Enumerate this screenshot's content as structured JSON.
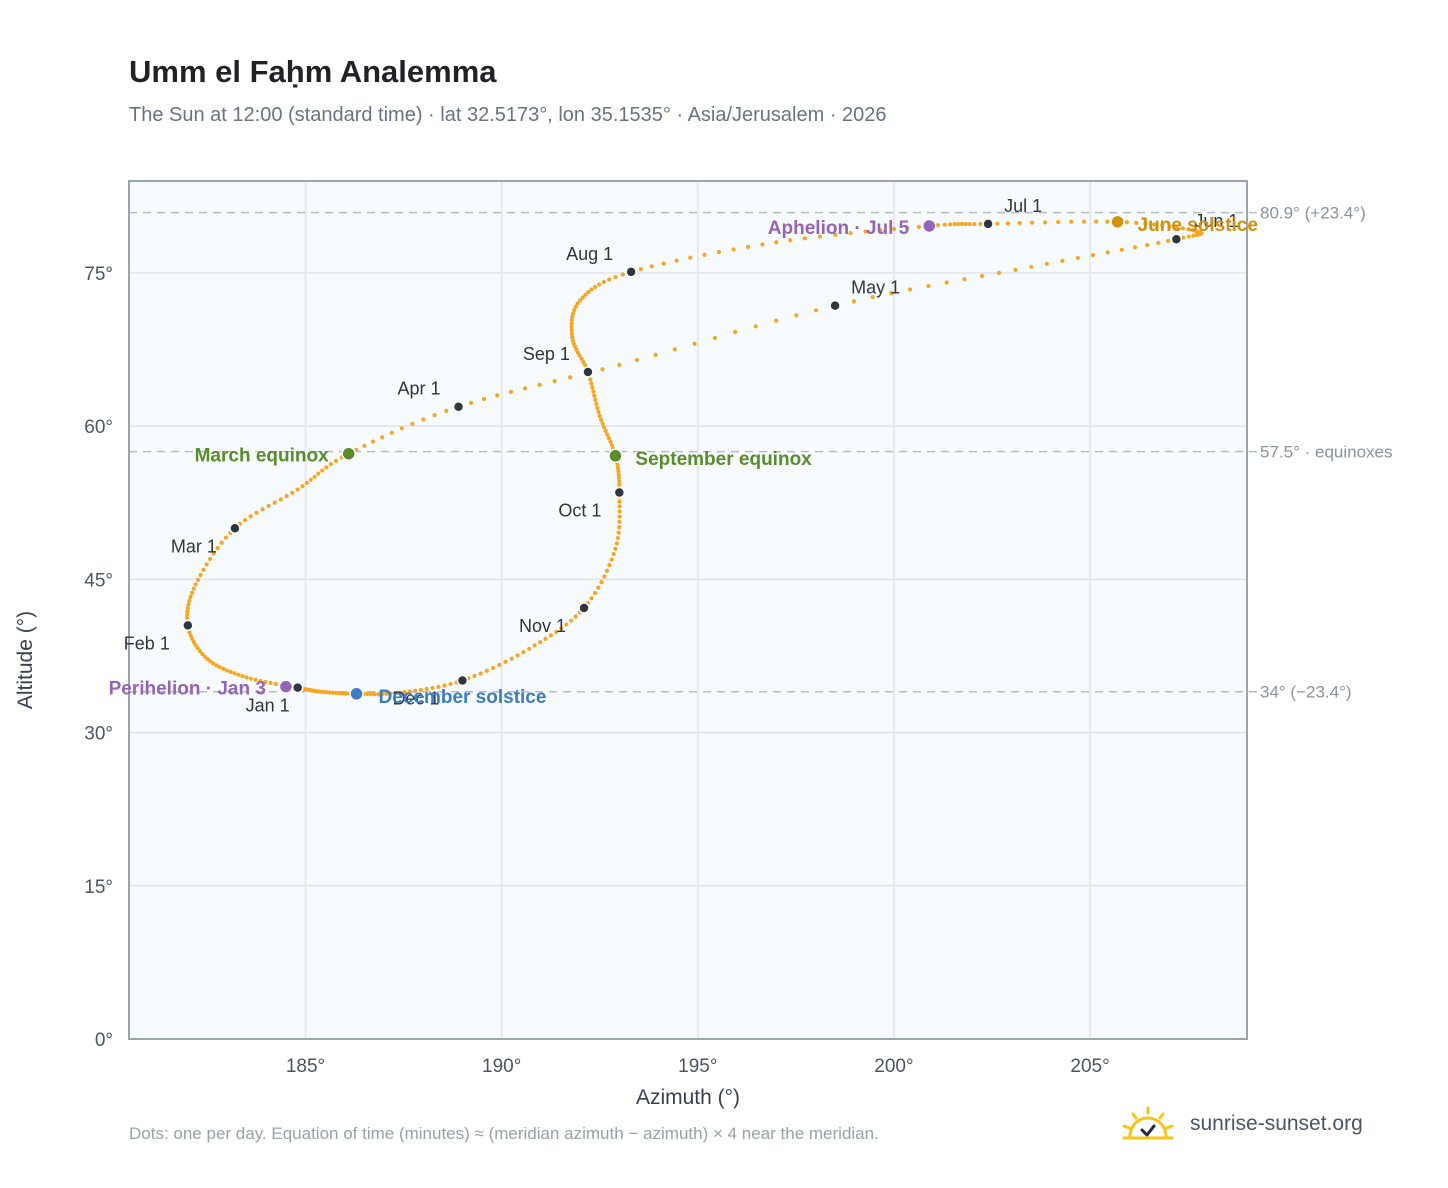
{
  "header": {
    "title": "Umm el Faḥm Analemma",
    "subtitle": "The Sun at 12:00 (standard time) · lat 32.5173°, lon 35.1535° · Asia/Jerusalem · 2026"
  },
  "footer": {
    "footnote": "Dots: one per day. Equation of time (minutes) ≈ (meridian azimuth − azimuth) × 4 near the meridian.",
    "brand": "sunrise-sunset.org"
  },
  "colors": {
    "curve": "#f5a623",
    "month_dot": "#2f3640",
    "equinox": "#5b8c2a",
    "june_solstice": "#d4900a",
    "december_solstice": "#3b7cc4",
    "apsis": "#9464b8",
    "grid": "#e5e9ef",
    "plot_bg": "#f8fbfe",
    "refline": "#b5bec8",
    "brand_icon": "#f5c518"
  },
  "chart_data": {
    "type": "scatter",
    "xlabel": "Azimuth (°)",
    "ylabel": "Altitude (°)",
    "xlim": [
      180.5,
      209
    ],
    "ylim": [
      0,
      84
    ],
    "xticks": [
      185,
      190,
      195,
      200,
      205
    ],
    "xtick_labels": [
      "185°",
      "190°",
      "195°",
      "200°",
      "205°"
    ],
    "yticks": [
      0,
      15,
      30,
      45,
      60,
      75
    ],
    "ytick_labels": [
      "0°",
      "15°",
      "30°",
      "45°",
      "60°",
      "75°"
    ],
    "grid": true,
    "reference_lines": [
      {
        "y": 80.9,
        "label": "80.9° (+23.4°)"
      },
      {
        "y": 57.5,
        "label": "57.5° · equinoxes"
      },
      {
        "y": 34.0,
        "label": "34° (−23.4°)"
      }
    ],
    "months": [
      {
        "label": "Jan 1",
        "az": 184.8,
        "alt": 34.4
      },
      {
        "label": "Feb 1",
        "az": 182.0,
        "alt": 40.5
      },
      {
        "label": "Mar 1",
        "az": 183.2,
        "alt": 50.0
      },
      {
        "label": "Apr 1",
        "az": 188.9,
        "alt": 61.9
      },
      {
        "label": "May 1",
        "az": 198.5,
        "alt": 71.8
      },
      {
        "label": "Jun 1",
        "az": 207.2,
        "alt": 78.3
      },
      {
        "label": "Jul 1",
        "az": 202.4,
        "alt": 79.8
      },
      {
        "label": "Aug 1",
        "az": 193.3,
        "alt": 75.1
      },
      {
        "label": "Sep 1",
        "az": 192.2,
        "alt": 65.3
      },
      {
        "label": "Oct 1",
        "az": 193.0,
        "alt": 53.5
      },
      {
        "label": "Nov 1",
        "az": 192.1,
        "alt": 42.2
      },
      {
        "label": "Dec 1",
        "az": 189.0,
        "alt": 35.1
      }
    ],
    "events": [
      {
        "label": "March equinox",
        "az": 186.1,
        "alt": 57.3,
        "kind": "equinox"
      },
      {
        "label": "September equinox",
        "az": 192.9,
        "alt": 57.1,
        "kind": "equinox"
      },
      {
        "label": "June solstice",
        "az": 205.7,
        "alt": 80.0,
        "kind": "june_solstice"
      },
      {
        "label": "December solstice",
        "az": 186.3,
        "alt": 33.8,
        "kind": "december_solstice"
      },
      {
        "label": "Perihelion · Jan 3",
        "az": 184.5,
        "alt": 34.5,
        "kind": "apsis"
      },
      {
        "label": "Aphelion · Jul 5",
        "az": 200.9,
        "alt": 79.6,
        "kind": "apsis"
      }
    ],
    "path": [
      [
        184.8,
        34.4
      ],
      [
        183.5,
        35.4
      ],
      [
        182.5,
        37.2
      ],
      [
        182.0,
        40.5
      ],
      [
        182.2,
        44.5
      ],
      [
        183.2,
        50.0
      ],
      [
        184.8,
        53.8
      ],
      [
        186.1,
        57.3
      ],
      [
        188.9,
        61.9
      ],
      [
        193.0,
        66.0
      ],
      [
        198.5,
        71.8
      ],
      [
        203.5,
        75.6
      ],
      [
        207.2,
        78.3
      ],
      [
        207.7,
        79.1
      ],
      [
        205.7,
        80.0
      ],
      [
        202.4,
        79.8
      ],
      [
        200.9,
        79.6
      ],
      [
        197.0,
        78.0
      ],
      [
        193.3,
        75.1
      ],
      [
        192.0,
        72.3
      ],
      [
        191.8,
        68.7
      ],
      [
        192.2,
        65.3
      ],
      [
        192.5,
        61.0
      ],
      [
        192.9,
        57.1
      ],
      [
        193.0,
        53.5
      ],
      [
        192.9,
        48.0
      ],
      [
        192.1,
        42.2
      ],
      [
        190.7,
        38.2
      ],
      [
        189.0,
        35.1
      ],
      [
        187.4,
        33.9
      ],
      [
        186.3,
        33.8
      ],
      [
        185.4,
        34.0
      ],
      [
        184.8,
        34.4
      ]
    ]
  }
}
